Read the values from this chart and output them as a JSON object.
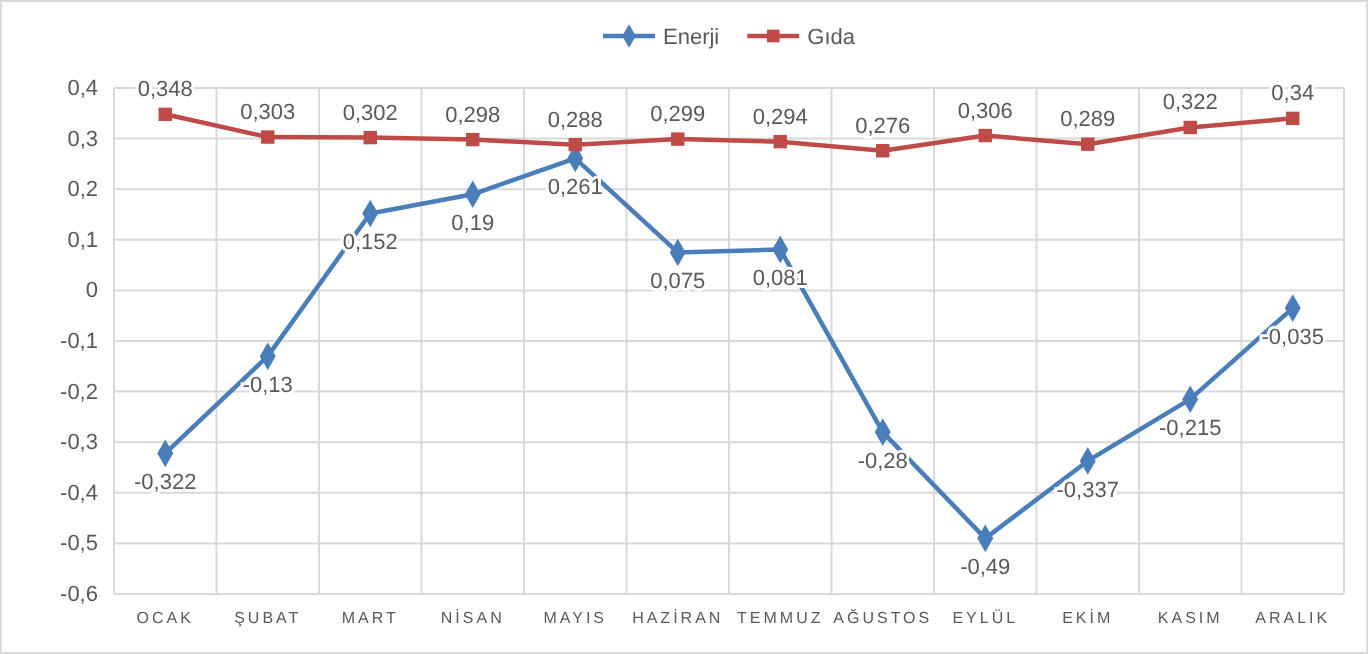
{
  "chart_data": {
    "type": "line",
    "categories": [
      "OCAK",
      "ŞUBAT",
      "MART",
      "NİSAN",
      "MAYIS",
      "HAZİRAN",
      "TEMMUZ",
      "AĞUSTOS",
      "EYLÜL",
      "EKİM",
      "KASIM",
      "ARALIK"
    ],
    "series": [
      {
        "name": "Enerji",
        "color": "#4a7ebb",
        "marker": "diamond",
        "values": [
          -0.322,
          -0.13,
          0.152,
          0.19,
          0.261,
          0.075,
          0.081,
          -0.28,
          -0.49,
          -0.337,
          -0.215,
          -0.035
        ],
        "value_labels": [
          "-0,322",
          "-0,13",
          "0,152",
          "0,19",
          "0,261",
          "0,075",
          "0,081",
          "-0,28",
          "-0,49",
          "-0,337",
          "-0,215",
          "-0,035"
        ]
      },
      {
        "name": "Gıda",
        "color": "#be4b48",
        "marker": "square",
        "values": [
          0.348,
          0.303,
          0.302,
          0.298,
          0.288,
          0.299,
          0.294,
          0.276,
          0.306,
          0.289,
          0.322,
          0.34
        ],
        "value_labels": [
          "0,348",
          "0,303",
          "0,302",
          "0,298",
          "0,288",
          "0,299",
          "0,294",
          "0,276",
          "0,306",
          "0,289",
          "0,322",
          "0,34"
        ]
      }
    ],
    "ylim": [
      -0.6,
      0.4
    ],
    "yticks": [
      {
        "value": -0.6,
        "label": "-0,6"
      },
      {
        "value": -0.5,
        "label": "-0,5"
      },
      {
        "value": -0.4,
        "label": "-0,4"
      },
      {
        "value": -0.3,
        "label": "-0,3"
      },
      {
        "value": -0.2,
        "label": "-0,2"
      },
      {
        "value": -0.1,
        "label": "-0,1"
      },
      {
        "value": 0,
        "label": "0"
      },
      {
        "value": 0.1,
        "label": "0,1"
      },
      {
        "value": 0.2,
        "label": "0,2"
      },
      {
        "value": 0.3,
        "label": "0,3"
      },
      {
        "value": 0.4,
        "label": "0,4"
      }
    ],
    "grid": true,
    "legend": "top",
    "line_style": "solid"
  }
}
